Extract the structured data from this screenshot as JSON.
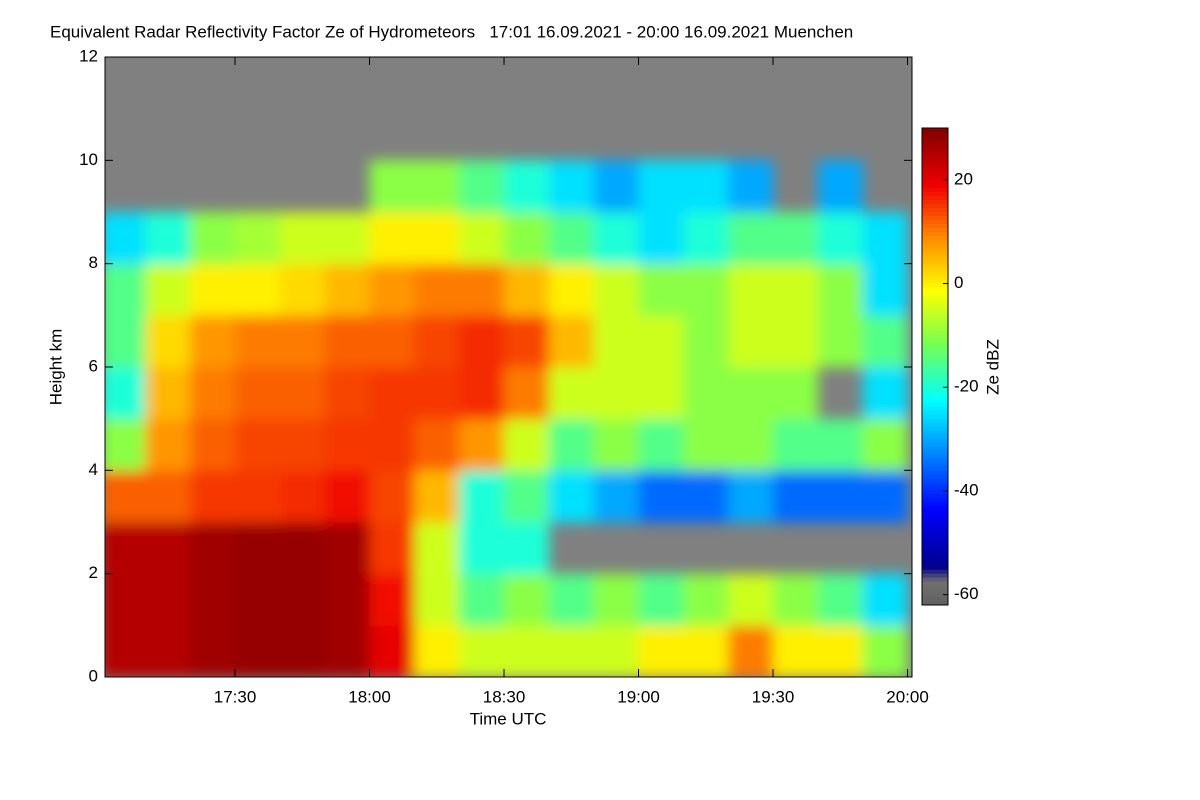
{
  "chart_data": {
    "type": "heatmap",
    "title": "Equivalent Radar Reflectivity Factor Ze of Hydrometeors   17:01 16.09.2021 - 20:00 16.09.2021 Muenchen",
    "x_label": "Time UTC",
    "y_label": "Height km",
    "colorbar_label": "Ze dBZ",
    "xlim": [
      1021,
      1201
    ],
    "xticks": [
      {
        "value": 1050,
        "label": "17:30"
      },
      {
        "value": 1080,
        "label": "18:00"
      },
      {
        "value": 1110,
        "label": "18:30"
      },
      {
        "value": 1140,
        "label": "19:00"
      },
      {
        "value": 1170,
        "label": "19:30"
      },
      {
        "value": 1200,
        "label": "20:00"
      }
    ],
    "ylim": [
      0,
      12
    ],
    "yticks": [
      0,
      2,
      4,
      6,
      8,
      10,
      12
    ],
    "clim": [
      -62,
      30
    ],
    "cticks": [
      -60,
      -40,
      -20,
      0,
      20
    ],
    "x": [
      1025,
      1035,
      1045,
      1055,
      1065,
      1075,
      1085,
      1095,
      1105,
      1115,
      1125,
      1135,
      1145,
      1155,
      1165,
      1175,
      1185,
      1195
    ],
    "y": [
      0.5,
      1.5,
      2.5,
      3.5,
      4.5,
      5.5,
      6.5,
      7.5,
      8.5,
      9.5,
      10.5,
      11.5
    ],
    "values": [
      [
        25,
        25,
        25,
        12,
        -10,
        -20,
        -15,
        -15,
        -25,
        null,
        null,
        null
      ],
      [
        25,
        25,
        25,
        12,
        8,
        5,
        2,
        -5,
        -20,
        null,
        null,
        null
      ],
      [
        27,
        27,
        27,
        15,
        12,
        10,
        8,
        0,
        -10,
        null,
        null,
        null
      ],
      [
        28,
        28,
        28,
        15,
        14,
        12,
        10,
        0,
        -8,
        null,
        null,
        null
      ],
      [
        28,
        28,
        28,
        16,
        14,
        12,
        10,
        2,
        -5,
        null,
        null,
        null
      ],
      [
        27,
        27,
        27,
        18,
        15,
        14,
        12,
        5,
        -5,
        null,
        null,
        null
      ],
      [
        20,
        18,
        15,
        14,
        15,
        15,
        12,
        8,
        0,
        -10,
        null,
        null
      ],
      [
        0,
        -5,
        -5,
        5,
        12,
        15,
        14,
        10,
        0,
        -10,
        null,
        null
      ],
      [
        -5,
        -15,
        -20,
        -20,
        8,
        16,
        16,
        10,
        -5,
        -15,
        null,
        null
      ],
      [
        -5,
        -10,
        -20,
        -15,
        -5,
        10,
        14,
        5,
        -10,
        -20,
        null,
        null
      ],
      [
        -5,
        -15,
        null,
        -25,
        -15,
        -5,
        5,
        0,
        -15,
        -25,
        null,
        null
      ],
      [
        -5,
        -10,
        null,
        -30,
        -10,
        -5,
        -5,
        -5,
        -20,
        -30,
        null,
        null
      ],
      [
        0,
        -15,
        null,
        -35,
        -15,
        -5,
        -5,
        -10,
        -25,
        -25,
        null,
        null
      ],
      [
        0,
        -10,
        null,
        -35,
        -10,
        -10,
        -10,
        -10,
        -20,
        -25,
        null,
        null
      ],
      [
        10,
        -5,
        null,
        -30,
        -10,
        -10,
        -5,
        -5,
        -15,
        -30,
        null,
        null
      ],
      [
        0,
        -10,
        null,
        -35,
        -15,
        -10,
        -5,
        -5,
        -15,
        null,
        null,
        null
      ],
      [
        0,
        -15,
        null,
        -35,
        -15,
        null,
        -10,
        -10,
        -20,
        -30,
        null,
        null
      ],
      [
        -10,
        -25,
        null,
        -35,
        -10,
        -25,
        -15,
        -25,
        -25,
        null,
        null,
        null
      ]
    ]
  }
}
